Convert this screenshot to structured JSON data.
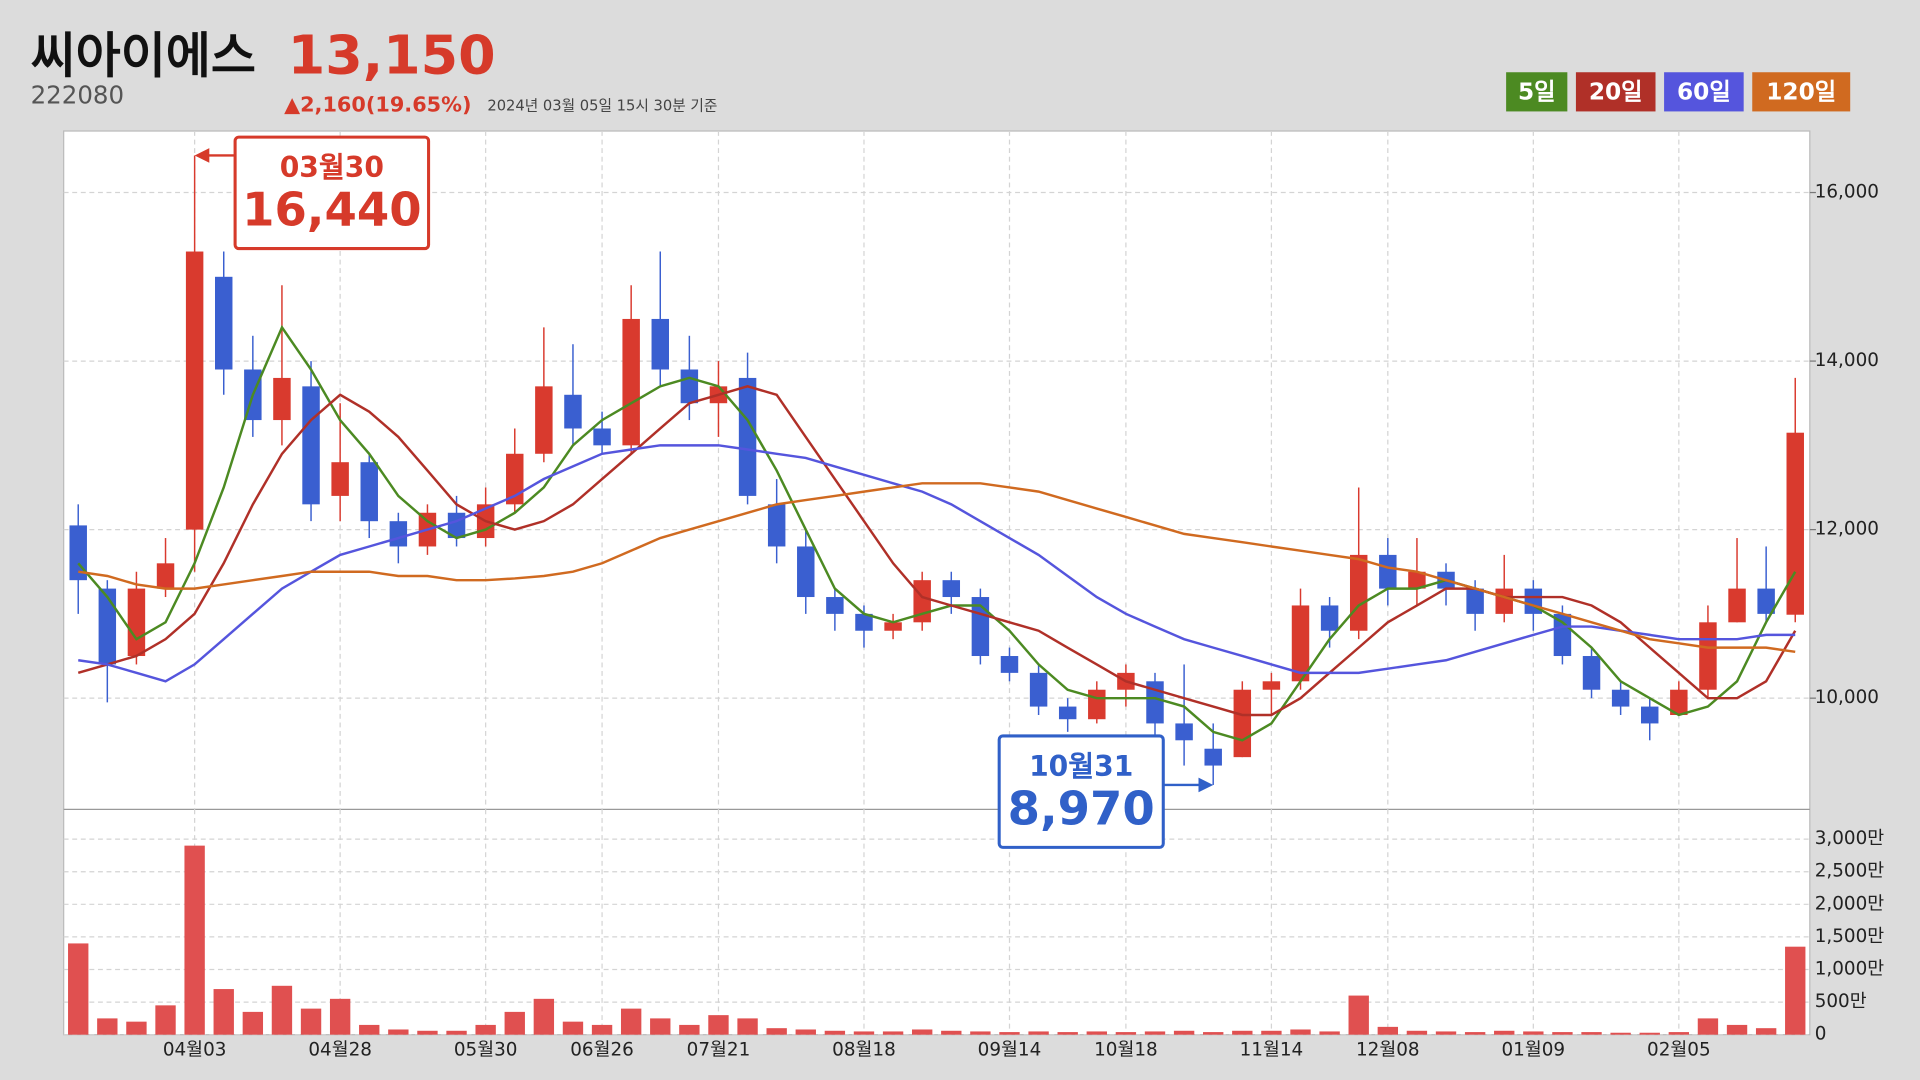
{
  "header": {
    "name": "씨아이에스",
    "price": "13,150",
    "code": "222080",
    "change": "▲2,160(19.65%)",
    "timestamp": "2024년 03월 05일 15시 30분 기준"
  },
  "chart_data": {
    "type": "candlestick",
    "up_color": "#d93a2e",
    "down_color": "#3a5fd0",
    "categories": [
      null,
      null,
      null,
      null,
      "04월03",
      null,
      null,
      null,
      null,
      "04월28",
      null,
      null,
      null,
      null,
      "05월30",
      null,
      null,
      null,
      "06월26",
      null,
      null,
      null,
      "07월21",
      null,
      null,
      null,
      null,
      "08월18",
      null,
      null,
      null,
      null,
      "09월14",
      null,
      null,
      null,
      "10월18",
      null,
      null,
      null,
      null,
      "11월14",
      null,
      null,
      null,
      "12월08",
      null,
      null,
      null,
      null,
      "01월09",
      null,
      null,
      null,
      null,
      "02월05",
      null,
      null,
      null,
      null
    ],
    "open": [
      12050,
      11300,
      10500,
      11300,
      12000,
      15000,
      13900,
      13300,
      13700,
      12400,
      12800,
      12100,
      11800,
      12200,
      11900,
      12300,
      12900,
      13600,
      13200,
      13000,
      14500,
      13900,
      13500,
      13800,
      12300,
      11800,
      11200,
      11000,
      10800,
      10900,
      11400,
      11200,
      10500,
      10300,
      9900,
      9750,
      10100,
      10200,
      9700,
      9400,
      9300,
      10100,
      10200,
      11100,
      10800,
      11700,
      11300,
      11500,
      11300,
      11000,
      11300,
      11000,
      10500,
      10100,
      9900,
      9800,
      10100,
      10900,
      11300,
      10990
    ],
    "high": [
      12300,
      11400,
      11500,
      11900,
      16440,
      15300,
      14300,
      14900,
      14000,
      13500,
      12900,
      12200,
      12300,
      12400,
      12500,
      13200,
      14400,
      14200,
      13400,
      14900,
      15300,
      14300,
      14000,
      14100,
      12600,
      12000,
      11300,
      11100,
      11000,
      11500,
      11500,
      11300,
      10600,
      10400,
      10000,
      10200,
      10400,
      10300,
      10400,
      9700,
      10200,
      10300,
      11300,
      11200,
      12500,
      11900,
      11900,
      11600,
      11400,
      11700,
      11400,
      11100,
      10600,
      10200,
      10000,
      10200,
      11100,
      11900,
      11800,
      13800
    ],
    "low": [
      11000,
      9950,
      10400,
      11200,
      11500,
      13600,
      13100,
      13000,
      12100,
      12100,
      11900,
      11600,
      11700,
      11800,
      11800,
      12200,
      12800,
      13000,
      12900,
      12900,
      13700,
      13300,
      13100,
      12300,
      11600,
      11000,
      10800,
      10600,
      10700,
      10800,
      11000,
      10400,
      10200,
      9800,
      9600,
      9700,
      9900,
      9500,
      9200,
      8970,
      9300,
      9800,
      10100,
      10600,
      10700,
      11100,
      11100,
      11100,
      10800,
      10900,
      10800,
      10400,
      10000,
      9800,
      9500,
      9800,
      10000,
      10900,
      10900,
      10900
    ],
    "close": [
      11400,
      10400,
      11300,
      11600,
      15300,
      13900,
      13300,
      13800,
      12300,
      12800,
      12100,
      11800,
      12200,
      11900,
      12300,
      12900,
      13700,
      13200,
      13000,
      14500,
      13900,
      13500,
      13700,
      12400,
      11800,
      11200,
      11000,
      10800,
      10900,
      11400,
      11200,
      10500,
      10300,
      9900,
      9750,
      10100,
      10300,
      9700,
      9500,
      9200,
      10100,
      10200,
      11100,
      10800,
      11700,
      11300,
      11500,
      11300,
      11000,
      11300,
      11000,
      10500,
      10100,
      9900,
      9700,
      10100,
      10900,
      11300,
      11000,
      13150
    ],
    "ylim": [
      8680,
      16730
    ],
    "yticks": [
      {
        "value": 10000,
        "label": "10,000"
      },
      {
        "value": 12000,
        "label": "12,000"
      },
      {
        "value": 14000,
        "label": "14,000"
      },
      {
        "value": 16000,
        "label": "16,000"
      }
    ],
    "grid": true,
    "series": [
      {
        "name": "5일",
        "color": "#4c8a22",
        "values": [
          11600,
          11200,
          10700,
          10900,
          11600,
          12500,
          13600,
          14400,
          13900,
          13300,
          12900,
          12400,
          12100,
          11900,
          12000,
          12200,
          12500,
          13000,
          13300,
          13500,
          13700,
          13800,
          13700,
          13300,
          12700,
          12000,
          11300,
          11000,
          10900,
          11000,
          11100,
          11100,
          10800,
          10400,
          10100,
          10000,
          10000,
          10000,
          9900,
          9600,
          9500,
          9700,
          10200,
          10700,
          11100,
          11300,
          11300,
          11400,
          11300,
          11200,
          11100,
          10900,
          10600,
          10200,
          10000,
          9800,
          9900,
          10200,
          10900,
          11500
        ]
      },
      {
        "name": "20일",
        "color": "#b03028",
        "values": [
          10300,
          10400,
          10500,
          10700,
          11000,
          11600,
          12300,
          12900,
          13300,
          13600,
          13400,
          13100,
          12700,
          12300,
          12100,
          12000,
          12100,
          12300,
          12600,
          12900,
          13200,
          13500,
          13600,
          13700,
          13600,
          13100,
          12600,
          12100,
          11600,
          11200,
          11100,
          11000,
          10900,
          10800,
          10600,
          10400,
          10200,
          10100,
          10000,
          9900,
          9800,
          9800,
          10000,
          10300,
          10600,
          10900,
          11100,
          11300,
          11300,
          11200,
          11200,
          11200,
          11100,
          10900,
          10600,
          10300,
          10000,
          10000,
          10200,
          10800
        ]
      },
      {
        "name": "60일",
        "color": "#5555dd",
        "values": [
          10450,
          10400,
          10300,
          10200,
          10400,
          10700,
          11000,
          11300,
          11500,
          11700,
          11800,
          11900,
          12000,
          12100,
          12250,
          12400,
          12600,
          12750,
          12900,
          12950,
          13000,
          13000,
          13000,
          12950,
          12900,
          12850,
          12750,
          12650,
          12550,
          12450,
          12300,
          12100,
          11900,
          11700,
          11450,
          11200,
          11000,
          10850,
          10700,
          10600,
          10500,
          10400,
          10300,
          10300,
          10300,
          10350,
          10400,
          10450,
          10550,
          10650,
          10750,
          10850,
          10850,
          10800,
          10750,
          10700,
          10700,
          10700,
          10750,
          10750
        ]
      },
      {
        "name": "120일",
        "color": "#d06a20",
        "values": [
          11500,
          11450,
          11350,
          11300,
          11300,
          11350,
          11400,
          11450,
          11500,
          11500,
          11500,
          11450,
          11450,
          11400,
          11400,
          11420,
          11450,
          11500,
          11600,
          11750,
          11900,
          12000,
          12100,
          12200,
          12300,
          12350,
          12400,
          12450,
          12500,
          12550,
          12550,
          12550,
          12500,
          12450,
          12350,
          12250,
          12150,
          12050,
          11950,
          11900,
          11850,
          11800,
          11750,
          11700,
          11650,
          11550,
          11500,
          11400,
          11300,
          11200,
          11100,
          11000,
          10900,
          10800,
          10700,
          10650,
          10600,
          10600,
          10600,
          10550
        ]
      }
    ],
    "volume": {
      "color": "#e05050",
      "values": [
        1400,
        250,
        200,
        450,
        2900,
        700,
        350,
        750,
        400,
        550,
        150,
        80,
        60,
        60,
        150,
        350,
        550,
        200,
        150,
        400,
        250,
        150,
        300,
        250,
        100,
        80,
        60,
        50,
        50,
        80,
        60,
        50,
        40,
        50,
        40,
        50,
        40,
        50,
        60,
        40,
        60,
        60,
        80,
        50,
        600,
        120,
        60,
        50,
        40,
        60,
        50,
        40,
        40,
        30,
        30,
        40,
        250,
        150,
        100,
        1350
      ],
      "ylim": [
        0,
        3456
      ],
      "yticks": [
        0,
        {
          "value": 500,
          "label": "500만"
        },
        {
          "value": 1000,
          "label": "1,000만"
        },
        {
          "value": 1500,
          "label": "1,500만"
        },
        {
          "value": 2000,
          "label": "2,000만"
        },
        {
          "value": 2500,
          "label": "2,500만"
        },
        {
          "value": 3000,
          "label": "3,000만"
        }
      ]
    },
    "annotations": [
      {
        "date": "03월30",
        "value": 16440,
        "label": "16,440",
        "index": 4,
        "color": "#d63a2a"
      },
      {
        "date": "10월31",
        "value": 8970,
        "label": "8,970",
        "index": 39,
        "color": "#3060c8"
      }
    ]
  }
}
